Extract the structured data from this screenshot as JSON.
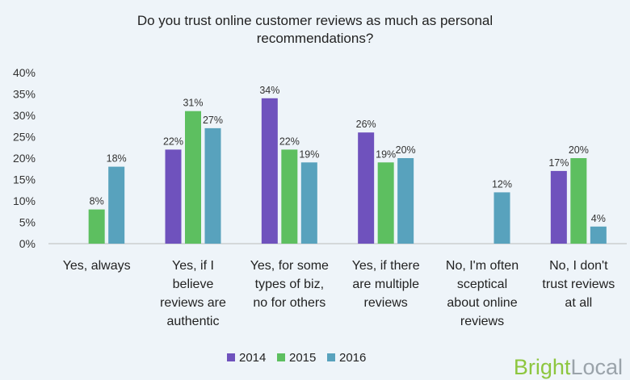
{
  "chart_data": {
    "type": "bar",
    "title_lines": [
      "Do you trust online customer reviews as much as personal",
      "recommendations?"
    ],
    "categories": [
      [
        "Yes, always"
      ],
      [
        "Yes, if I",
        "believe",
        "reviews are",
        "authentic"
      ],
      [
        "Yes, for some",
        "types of biz,",
        "no for others"
      ],
      [
        "Yes, if there",
        "are multiple",
        "reviews"
      ],
      [
        "No, I'm often",
        "sceptical",
        "about online",
        "reviews"
      ],
      [
        "No, I don't",
        "trust reviews",
        "at all"
      ]
    ],
    "series": [
      {
        "name": "2014",
        "color": "#6f52bd",
        "values": [
          null,
          22,
          34,
          26,
          null,
          17
        ]
      },
      {
        "name": "2015",
        "color": "#5dbf60",
        "values": [
          8,
          31,
          22,
          19,
          null,
          20
        ]
      },
      {
        "name": "2016",
        "color": "#58a2bd",
        "values": [
          18,
          27,
          19,
          20,
          12,
          4
        ]
      }
    ],
    "ylim": [
      0,
      40
    ],
    "yticks": [
      "0%",
      "5%",
      "10%",
      "15%",
      "20%",
      "25%",
      "30%",
      "35%",
      "40%"
    ],
    "value_suffix": "%",
    "legend_position": "bottom",
    "grid": false
  },
  "logo": {
    "part1": "Bright",
    "part2": "Local"
  }
}
